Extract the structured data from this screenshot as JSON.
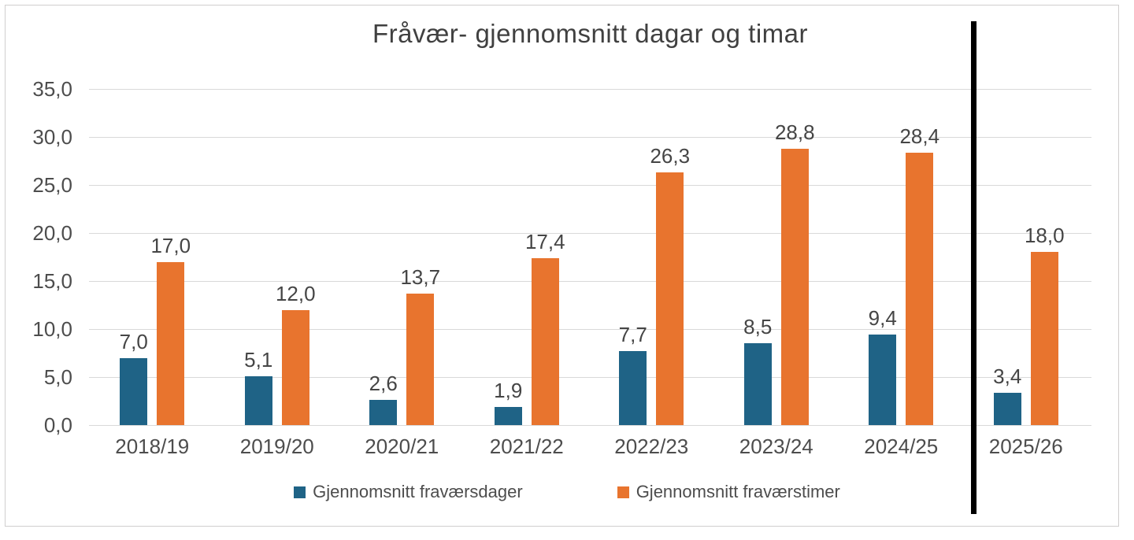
{
  "chart_data": {
    "type": "bar",
    "title": "Fråvær- gjennomsnitt dagar og timar",
    "categories": [
      "2018/19",
      "2019/20",
      "2020/21",
      "2021/22",
      "2022/23",
      "2023/24",
      "2024/25",
      "2025/26"
    ],
    "series": [
      {
        "name": "Gjennomsnitt fraværsdager",
        "color": "#1f6386",
        "values": [
          7.0,
          5.1,
          2.6,
          1.9,
          7.7,
          8.5,
          9.4,
          3.4
        ],
        "value_labels": [
          "7,0",
          "5,1",
          "2,6",
          "1,9",
          "7,7",
          "8,5",
          "9,4",
          "3,4"
        ]
      },
      {
        "name": "Gjennomsnitt fraværstimer",
        "color": "#e8742e",
        "values": [
          17.0,
          12.0,
          13.7,
          17.4,
          26.3,
          28.8,
          28.4,
          18.0
        ],
        "value_labels": [
          "17,0",
          "12,0",
          "13,7",
          "17,4",
          "26,3",
          "28,8",
          "28,4",
          "18,0"
        ]
      }
    ],
    "ylim": [
      0,
      35
    ],
    "ytick_step": 5,
    "ytick_labels": [
      "0,0",
      "5,0",
      "10,0",
      "15,0",
      "20,0",
      "25,0",
      "30,0",
      "35,0"
    ],
    "grid": true,
    "legend_position": "bottom",
    "annotations": {
      "vertical_divider": {
        "between_categories": [
          "2024/25",
          "2025/26"
        ],
        "color": "#000000"
      }
    }
  }
}
